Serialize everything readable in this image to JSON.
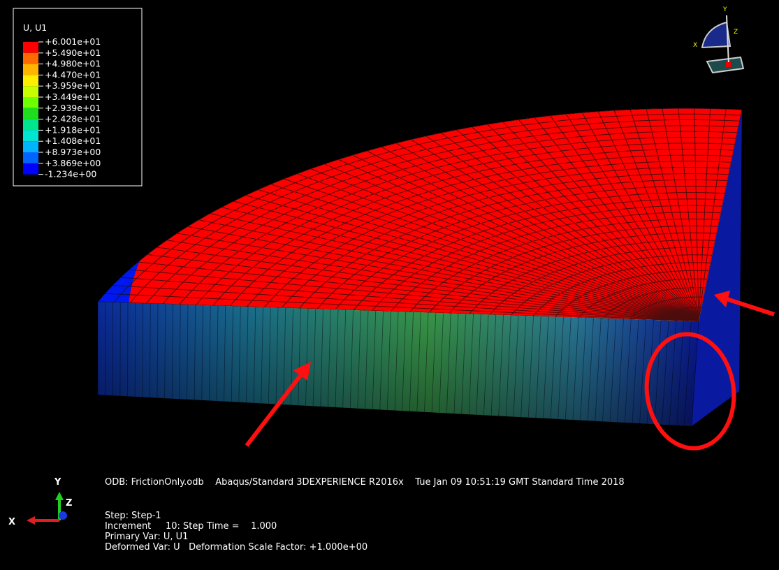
{
  "legend": {
    "title": "U, U1",
    "labels": [
      "+6.001e+01",
      "+5.490e+01",
      "+4.980e+01",
      "+4.470e+01",
      "+3.959e+01",
      "+3.449e+01",
      "+2.939e+01",
      "+2.428e+01",
      "+1.918e+01",
      "+1.408e+01",
      "+8.973e+00",
      "+3.869e+00",
      "-1.234e+00"
    ],
    "colors": [
      "#ff0000",
      "#ff6a00",
      "#ffb400",
      "#ffee00",
      "#c8ff00",
      "#6eff00",
      "#1edc1e",
      "#00e68c",
      "#00e6d2",
      "#00b4ff",
      "#0064ff",
      "#0000ff"
    ]
  },
  "view_triad": {
    "y": "Y",
    "z": "Z",
    "x": "X"
  },
  "axis_triad": {
    "y": "Y",
    "z": "Z",
    "x": "X"
  },
  "info": {
    "odb": "ODB: FrictionOnly.odb    Abaqus/Standard 3DEXPERIENCE R2016x    Tue Jan 09 10:51:19 GMT Standard Time 2018",
    "step": "Step: Step-1",
    "increment": "Increment     10: Step Time =    1.000",
    "primary": "Primary Var: U, U1",
    "deformed": "Deformed Var: U   Deformation Scale Factor: +1.000e+00"
  }
}
